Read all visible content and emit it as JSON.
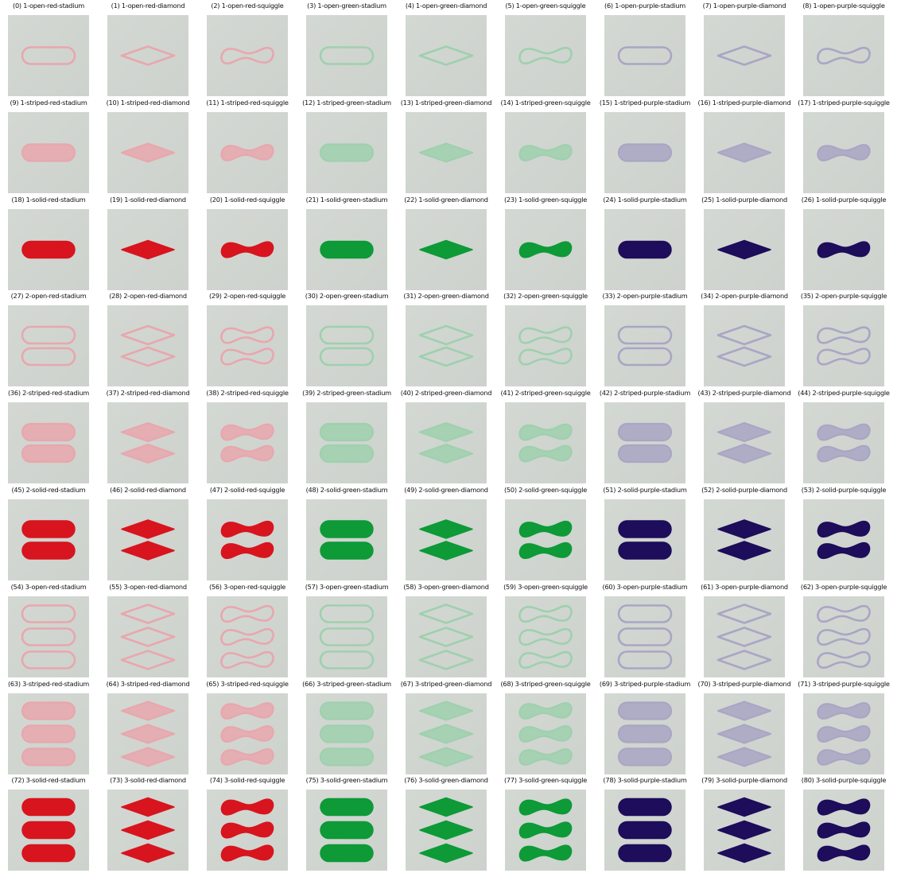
{
  "cards": [
    {
      "index": 0,
      "caption": "(0) 1-open-red-stadium",
      "count": 1,
      "shading": "open",
      "color": "red",
      "shape": "stadium"
    },
    {
      "index": 1,
      "caption": "(1) 1-open-red-diamond",
      "count": 1,
      "shading": "open",
      "color": "red",
      "shape": "diamond"
    },
    {
      "index": 2,
      "caption": "(2) 1-open-red-squiggle",
      "count": 1,
      "shading": "open",
      "color": "red",
      "shape": "squiggle"
    },
    {
      "index": 3,
      "caption": "(3) 1-open-green-stadium",
      "count": 1,
      "shading": "open",
      "color": "green",
      "shape": "stadium"
    },
    {
      "index": 4,
      "caption": "(4) 1-open-green-diamond",
      "count": 1,
      "shading": "open",
      "color": "green",
      "shape": "diamond"
    },
    {
      "index": 5,
      "caption": "(5) 1-open-green-squiggle",
      "count": 1,
      "shading": "open",
      "color": "green",
      "shape": "squiggle"
    },
    {
      "index": 6,
      "caption": "(6) 1-open-purple-stadium",
      "count": 1,
      "shading": "open",
      "color": "purple",
      "shape": "stadium"
    },
    {
      "index": 7,
      "caption": "(7) 1-open-purple-diamond",
      "count": 1,
      "shading": "open",
      "color": "purple",
      "shape": "diamond"
    },
    {
      "index": 8,
      "caption": "(8) 1-open-purple-squiggle",
      "count": 1,
      "shading": "open",
      "color": "purple",
      "shape": "squiggle"
    },
    {
      "index": 9,
      "caption": "(9) 1-striped-red-stadium",
      "count": 1,
      "shading": "striped",
      "color": "red",
      "shape": "stadium"
    },
    {
      "index": 10,
      "caption": "(10) 1-striped-red-diamond",
      "count": 1,
      "shading": "striped",
      "color": "red",
      "shape": "diamond"
    },
    {
      "index": 11,
      "caption": "(11) 1-striped-red-squiggle",
      "count": 1,
      "shading": "striped",
      "color": "red",
      "shape": "squiggle"
    },
    {
      "index": 12,
      "caption": "(12) 1-striped-green-stadium",
      "count": 1,
      "shading": "striped",
      "color": "green",
      "shape": "stadium"
    },
    {
      "index": 13,
      "caption": "(13) 1-striped-green-diamond",
      "count": 1,
      "shading": "striped",
      "color": "green",
      "shape": "diamond"
    },
    {
      "index": 14,
      "caption": "(14) 1-striped-green-squiggle",
      "count": 1,
      "shading": "striped",
      "color": "green",
      "shape": "squiggle"
    },
    {
      "index": 15,
      "caption": "(15) 1-striped-purple-stadium",
      "count": 1,
      "shading": "striped",
      "color": "purple",
      "shape": "stadium"
    },
    {
      "index": 16,
      "caption": "(16) 1-striped-purple-diamond",
      "count": 1,
      "shading": "striped",
      "color": "purple",
      "shape": "diamond"
    },
    {
      "index": 17,
      "caption": "(17) 1-striped-purple-squiggle",
      "count": 1,
      "shading": "striped",
      "color": "purple",
      "shape": "squiggle"
    },
    {
      "index": 18,
      "caption": "(18) 1-solid-red-stadium",
      "count": 1,
      "shading": "solid",
      "color": "red",
      "shape": "stadium"
    },
    {
      "index": 19,
      "caption": "(19) 1-solid-red-diamond",
      "count": 1,
      "shading": "solid",
      "color": "red",
      "shape": "diamond"
    },
    {
      "index": 20,
      "caption": "(20) 1-solid-red-squiggle",
      "count": 1,
      "shading": "solid",
      "color": "red",
      "shape": "squiggle"
    },
    {
      "index": 21,
      "caption": "(21) 1-solid-green-stadium",
      "count": 1,
      "shading": "solid",
      "color": "green",
      "shape": "stadium"
    },
    {
      "index": 22,
      "caption": "(22) 1-solid-green-diamond",
      "count": 1,
      "shading": "solid",
      "color": "green",
      "shape": "diamond"
    },
    {
      "index": 23,
      "caption": "(23) 1-solid-green-squiggle",
      "count": 1,
      "shading": "solid",
      "color": "green",
      "shape": "squiggle"
    },
    {
      "index": 24,
      "caption": "(24) 1-solid-purple-stadium",
      "count": 1,
      "shading": "solid",
      "color": "purple",
      "shape": "stadium"
    },
    {
      "index": 25,
      "caption": "(25) 1-solid-purple-diamond",
      "count": 1,
      "shading": "solid",
      "color": "purple",
      "shape": "diamond"
    },
    {
      "index": 26,
      "caption": "(26) 1-solid-purple-squiggle",
      "count": 1,
      "shading": "solid",
      "color": "purple",
      "shape": "squiggle"
    },
    {
      "index": 27,
      "caption": "(27) 2-open-red-stadium",
      "count": 2,
      "shading": "open",
      "color": "red",
      "shape": "stadium"
    },
    {
      "index": 28,
      "caption": "(28) 2-open-red-diamond",
      "count": 2,
      "shading": "open",
      "color": "red",
      "shape": "diamond"
    },
    {
      "index": 29,
      "caption": "(29) 2-open-red-squiggle",
      "count": 2,
      "shading": "open",
      "color": "red",
      "shape": "squiggle"
    },
    {
      "index": 30,
      "caption": "(30) 2-open-green-stadium",
      "count": 2,
      "shading": "open",
      "color": "green",
      "shape": "stadium"
    },
    {
      "index": 31,
      "caption": "(31) 2-open-green-diamond",
      "count": 2,
      "shading": "open",
      "color": "green",
      "shape": "diamond"
    },
    {
      "index": 32,
      "caption": "(32) 2-open-green-squiggle",
      "count": 2,
      "shading": "open",
      "color": "green",
      "shape": "squiggle"
    },
    {
      "index": 33,
      "caption": "(33) 2-open-purple-stadium",
      "count": 2,
      "shading": "open",
      "color": "purple",
      "shape": "stadium"
    },
    {
      "index": 34,
      "caption": "(34) 2-open-purple-diamond",
      "count": 2,
      "shading": "open",
      "color": "purple",
      "shape": "diamond"
    },
    {
      "index": 35,
      "caption": "(35) 2-open-purple-squiggle",
      "count": 2,
      "shading": "open",
      "color": "purple",
      "shape": "squiggle"
    },
    {
      "index": 36,
      "caption": "(36) 2-striped-red-stadium",
      "count": 2,
      "shading": "striped",
      "color": "red",
      "shape": "stadium"
    },
    {
      "index": 37,
      "caption": "(37) 2-striped-red-diamond",
      "count": 2,
      "shading": "striped",
      "color": "red",
      "shape": "diamond"
    },
    {
      "index": 38,
      "caption": "(38) 2-striped-red-squiggle",
      "count": 2,
      "shading": "striped",
      "color": "red",
      "shape": "squiggle"
    },
    {
      "index": 39,
      "caption": "(39) 2-striped-green-stadium",
      "count": 2,
      "shading": "striped",
      "color": "green",
      "shape": "stadium"
    },
    {
      "index": 40,
      "caption": "(40) 2-striped-green-diamond",
      "count": 2,
      "shading": "striped",
      "color": "green",
      "shape": "diamond"
    },
    {
      "index": 41,
      "caption": "(41) 2-striped-green-squiggle",
      "count": 2,
      "shading": "striped",
      "color": "green",
      "shape": "squiggle"
    },
    {
      "index": 42,
      "caption": "(42) 2-striped-purple-stadium",
      "count": 2,
      "shading": "striped",
      "color": "purple",
      "shape": "stadium"
    },
    {
      "index": 43,
      "caption": "(43) 2-striped-purple-diamond",
      "count": 2,
      "shading": "striped",
      "color": "purple",
      "shape": "diamond"
    },
    {
      "index": 44,
      "caption": "(44) 2-striped-purple-squiggle",
      "count": 2,
      "shading": "striped",
      "color": "purple",
      "shape": "squiggle"
    },
    {
      "index": 45,
      "caption": "(45) 2-solid-red-stadium",
      "count": 2,
      "shading": "solid",
      "color": "red",
      "shape": "stadium"
    },
    {
      "index": 46,
      "caption": "(46) 2-solid-red-diamond",
      "count": 2,
      "shading": "solid",
      "color": "red",
      "shape": "diamond"
    },
    {
      "index": 47,
      "caption": "(47) 2-solid-red-squiggle",
      "count": 2,
      "shading": "solid",
      "color": "red",
      "shape": "squiggle"
    },
    {
      "index": 48,
      "caption": "(48) 2-solid-green-stadium",
      "count": 2,
      "shading": "solid",
      "color": "green",
      "shape": "stadium"
    },
    {
      "index": 49,
      "caption": "(49) 2-solid-green-diamond",
      "count": 2,
      "shading": "solid",
      "color": "green",
      "shape": "diamond"
    },
    {
      "index": 50,
      "caption": "(50) 2-solid-green-squiggle",
      "count": 2,
      "shading": "solid",
      "color": "green",
      "shape": "squiggle"
    },
    {
      "index": 51,
      "caption": "(51) 2-solid-purple-stadium",
      "count": 2,
      "shading": "solid",
      "color": "purple",
      "shape": "stadium"
    },
    {
      "index": 52,
      "caption": "(52) 2-solid-purple-diamond",
      "count": 2,
      "shading": "solid",
      "color": "purple",
      "shape": "diamond"
    },
    {
      "index": 53,
      "caption": "(53) 2-solid-purple-squiggle",
      "count": 2,
      "shading": "solid",
      "color": "purple",
      "shape": "squiggle"
    },
    {
      "index": 54,
      "caption": "(54) 3-open-red-stadium",
      "count": 3,
      "shading": "open",
      "color": "red",
      "shape": "stadium"
    },
    {
      "index": 55,
      "caption": "(55) 3-open-red-diamond",
      "count": 3,
      "shading": "open",
      "color": "red",
      "shape": "diamond"
    },
    {
      "index": 56,
      "caption": "(56) 3-open-red-squiggle",
      "count": 3,
      "shading": "open",
      "color": "red",
      "shape": "squiggle"
    },
    {
      "index": 57,
      "caption": "(57) 3-open-green-stadium",
      "count": 3,
      "shading": "open",
      "color": "green",
      "shape": "stadium"
    },
    {
      "index": 58,
      "caption": "(58) 3-open-green-diamond",
      "count": 3,
      "shading": "open",
      "color": "green",
      "shape": "diamond"
    },
    {
      "index": 59,
      "caption": "(59) 3-open-green-squiggle",
      "count": 3,
      "shading": "open",
      "color": "green",
      "shape": "squiggle"
    },
    {
      "index": 60,
      "caption": "(60) 3-open-purple-stadium",
      "count": 3,
      "shading": "open",
      "color": "purple",
      "shape": "stadium"
    },
    {
      "index": 61,
      "caption": "(61) 3-open-purple-diamond",
      "count": 3,
      "shading": "open",
      "color": "purple",
      "shape": "diamond"
    },
    {
      "index": 62,
      "caption": "(62) 3-open-purple-squiggle",
      "count": 3,
      "shading": "open",
      "color": "purple",
      "shape": "squiggle"
    },
    {
      "index": 63,
      "caption": "(63) 3-striped-red-stadium",
      "count": 3,
      "shading": "striped",
      "color": "red",
      "shape": "stadium"
    },
    {
      "index": 64,
      "caption": "(64) 3-striped-red-diamond",
      "count": 3,
      "shading": "striped",
      "color": "red",
      "shape": "diamond"
    },
    {
      "index": 65,
      "caption": "(65) 3-striped-red-squiggle",
      "count": 3,
      "shading": "striped",
      "color": "red",
      "shape": "squiggle"
    },
    {
      "index": 66,
      "caption": "(66) 3-striped-green-stadium",
      "count": 3,
      "shading": "striped",
      "color": "green",
      "shape": "stadium"
    },
    {
      "index": 67,
      "caption": "(67) 3-striped-green-diamond",
      "count": 3,
      "shading": "striped",
      "color": "green",
      "shape": "diamond"
    },
    {
      "index": 68,
      "caption": "(68) 3-striped-green-squiggle",
      "count": 3,
      "shading": "striped",
      "color": "green",
      "shape": "squiggle"
    },
    {
      "index": 69,
      "caption": "(69) 3-striped-purple-stadium",
      "count": 3,
      "shading": "striped",
      "color": "purple",
      "shape": "stadium"
    },
    {
      "index": 70,
      "caption": "(70) 3-striped-purple-diamond",
      "count": 3,
      "shading": "striped",
      "color": "purple",
      "shape": "diamond"
    },
    {
      "index": 71,
      "caption": "(71) 3-striped-purple-squiggle",
      "count": 3,
      "shading": "striped",
      "color": "purple",
      "shape": "squiggle"
    },
    {
      "index": 72,
      "caption": "(72) 3-solid-red-stadium",
      "count": 3,
      "shading": "solid",
      "color": "red",
      "shape": "stadium"
    },
    {
      "index": 73,
      "caption": "(73) 3-solid-red-diamond",
      "count": 3,
      "shading": "solid",
      "color": "red",
      "shape": "diamond"
    },
    {
      "index": 74,
      "caption": "(74) 3-solid-red-squiggle",
      "count": 3,
      "shading": "solid",
      "color": "red",
      "shape": "squiggle"
    },
    {
      "index": 75,
      "caption": "(75) 3-solid-green-stadium",
      "count": 3,
      "shading": "solid",
      "color": "green",
      "shape": "stadium"
    },
    {
      "index": 76,
      "caption": "(76) 3-solid-green-diamond",
      "count": 3,
      "shading": "solid",
      "color": "green",
      "shape": "diamond"
    },
    {
      "index": 77,
      "caption": "(77) 3-solid-green-squiggle",
      "count": 3,
      "shading": "solid",
      "color": "green",
      "shape": "squiggle"
    },
    {
      "index": 78,
      "caption": "(78) 3-solid-purple-stadium",
      "count": 3,
      "shading": "solid",
      "color": "purple",
      "shape": "stadium"
    },
    {
      "index": 79,
      "caption": "(79) 3-solid-purple-diamond",
      "count": 3,
      "shading": "solid",
      "color": "purple",
      "shape": "diamond"
    },
    {
      "index": 80,
      "caption": "(80) 3-solid-purple-squiggle",
      "count": 3,
      "shading": "solid",
      "color": "purple",
      "shape": "squiggle"
    }
  ],
  "colors": {
    "red": {
      "solid": "#d8141e",
      "light": "#e8a7ad"
    },
    "green": {
      "solid": "#0d9a37",
      "light": "#9fd0ae"
    },
    "purple": {
      "solid": "#1d0d5a",
      "light": "#a9a6c4"
    }
  },
  "card_background": "#cdd2cd",
  "page_background": "#ffffff"
}
